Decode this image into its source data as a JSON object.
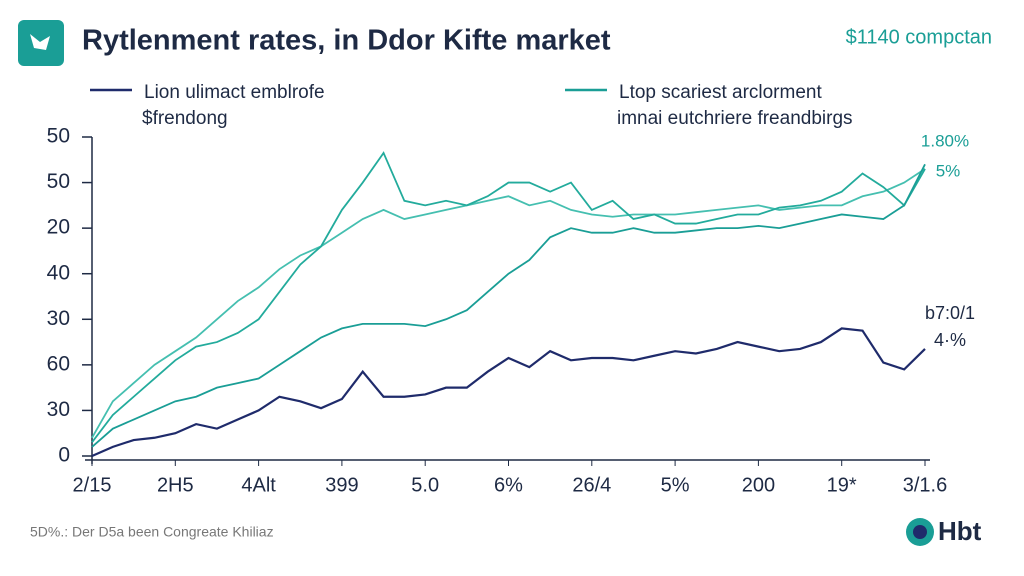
{
  "chart_data": {
    "type": "line",
    "title": "Rytlenment rates, in Ddor Kifte market",
    "subtitle": "$1140 compctan",
    "footer": "5D%.: Der D5a been Congreate Khiliaz",
    "logo": "Hbt",
    "annotations": [
      "1.80%",
      "5%",
      "b7:0/1",
      "4·%"
    ],
    "xlim": [
      0,
      40
    ],
    "ylim": [
      0,
      7
    ],
    "x": [
      0,
      1,
      2,
      3,
      4,
      5,
      6,
      7,
      8,
      9,
      10,
      11,
      12,
      13,
      14,
      15,
      16,
      17,
      18,
      19,
      20,
      21,
      22,
      23,
      24,
      25,
      26,
      27,
      28,
      29,
      30,
      31,
      32,
      33,
      34,
      35,
      36,
      37,
      38,
      39,
      40
    ],
    "xticks": [
      {
        "value": 0,
        "label": "2/15"
      },
      {
        "value": 4,
        "label": "2H5"
      },
      {
        "value": 8,
        "label": "4Alt"
      },
      {
        "value": 12,
        "label": "399"
      },
      {
        "value": 16,
        "label": "5.0"
      },
      {
        "value": 20,
        "label": "6%"
      },
      {
        "value": 24,
        "label": "26/4"
      },
      {
        "value": 28,
        "label": "5%"
      },
      {
        "value": 32,
        "label": "200"
      },
      {
        "value": 36,
        "label": "19*"
      },
      {
        "value": 40,
        "label": "3/1.6"
      }
    ],
    "yticks": [
      0,
      {
        "value": 1,
        "label": "30"
      },
      {
        "value": 2,
        "label": "60"
      },
      {
        "value": 3,
        "label": "30"
      },
      {
        "value": 4,
        "label": "40"
      },
      {
        "value": 5,
        "label": "20"
      },
      {
        "value": 6,
        "label": "50"
      },
      {
        "value": 7,
        "label": "50"
      }
    ],
    "series": [
      {
        "name": "Lion ulimact emblrofe\n$frendong",
        "color": "#1f2b6b",
        "values": [
          0,
          0.2,
          0.35,
          0.4,
          0.5,
          0.7,
          0.6,
          0.8,
          1.0,
          1.3,
          1.2,
          1.05,
          1.25,
          1.85,
          1.3,
          1.3,
          1.35,
          1.5,
          1.5,
          1.85,
          2.15,
          1.95,
          2.3,
          2.1,
          2.15,
          2.15,
          2.1,
          2.2,
          2.3,
          2.25,
          2.35,
          2.5,
          2.4,
          2.3,
          2.35,
          2.5,
          2.8,
          2.75,
          2.05,
          1.9,
          2.35
        ]
      },
      {
        "name": "Ltop scariest arclorment\nimnai eutchriere freandbirgs",
        "color": "#1a9e96",
        "values": [
          0.2,
          0.6,
          0.8,
          1.0,
          1.2,
          1.3,
          1.5,
          1.6,
          1.7,
          2.0,
          2.3,
          2.6,
          2.8,
          2.9,
          2.9,
          2.9,
          2.85,
          3.0,
          3.2,
          3.6,
          4.0,
          4.3,
          4.8,
          5.0,
          4.9,
          4.9,
          5.0,
          4.9,
          4.9,
          4.95,
          5.0,
          5.0,
          5.05,
          5.0,
          5.1,
          5.2,
          5.3,
          5.25,
          5.2,
          5.5,
          6.4
        ]
      },
      {
        "color": "#23ab9c",
        "values": [
          0.3,
          0.9,
          1.3,
          1.7,
          2.1,
          2.4,
          2.5,
          2.7,
          3.0,
          3.6,
          4.2,
          4.6,
          5.4,
          6.0,
          6.65,
          5.6,
          5.5,
          5.6,
          5.5,
          5.7,
          6.0,
          6.0,
          5.8,
          6.0,
          5.4,
          5.6,
          5.2,
          5.3,
          5.1,
          5.1,
          5.2,
          5.3,
          5.3,
          5.45,
          5.5,
          5.6,
          5.8,
          6.2,
          5.9,
          5.5,
          6.3
        ]
      },
      {
        "color": "#45bfb0",
        "values": [
          0.4,
          1.2,
          1.6,
          2.0,
          2.3,
          2.6,
          3.0,
          3.4,
          3.7,
          4.1,
          4.4,
          4.6,
          4.9,
          5.2,
          5.4,
          5.2,
          5.3,
          5.4,
          5.5,
          5.6,
          5.7,
          5.5,
          5.6,
          5.4,
          5.3,
          5.25,
          5.3,
          5.3,
          5.3,
          5.35,
          5.4,
          5.45,
          5.5,
          5.4,
          5.45,
          5.5,
          5.5,
          5.7,
          5.8,
          6.0,
          6.3
        ]
      }
    ]
  }
}
